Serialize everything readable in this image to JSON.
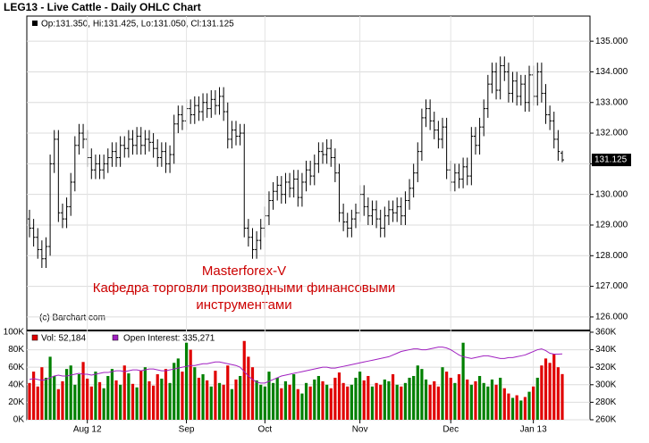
{
  "chart_data": [
    {
      "type": "ohlc",
      "title": "LEG13 - Live Cattle - Daily OHLC Chart",
      "legend": "Op:131.350, Hi:131.425, Lo:131.050, Cl:131.125",
      "color": "#000000",
      "annotations": [
        "Masterforex-V",
        "Кафедра торговли производными финансовыми",
        "инструментами"
      ],
      "annotation_color": "#cc0000",
      "credit": "(c) Barchart.com",
      "grid": true,
      "open": [
        129.2,
        128.9,
        128.6,
        128.2,
        127.9,
        128.3,
        131.0,
        131.8,
        129.4,
        129.2,
        129.6,
        130.4,
        131.6,
        132.0,
        131.8,
        131.2,
        130.8,
        131.0,
        130.8,
        131.0,
        131.2,
        131.4,
        131.2,
        131.6,
        131.5,
        131.8,
        131.6,
        131.9,
        131.6,
        131.8,
        131.7,
        131.5,
        131.2,
        131.4,
        131.0,
        131.3,
        132.3,
        132.6,
        132.4,
        132.8,
        132.6,
        132.9,
        132.7,
        133.0,
        132.8,
        133.1,
        132.9,
        133.2,
        132.7,
        131.8,
        132.1,
        131.9,
        132.0,
        128.9,
        128.6,
        128.2,
        128.5,
        128.9,
        129.3,
        129.8,
        130.1,
        130.3,
        130.0,
        130.4,
        130.2,
        130.5,
        129.9,
        130.4,
        130.8,
        130.6,
        131.0,
        131.4,
        131.3,
        131.5,
        131.2,
        130.7,
        129.4,
        129.1,
        128.9,
        129.2,
        129.4,
        130.0,
        129.6,
        129.3,
        129.5,
        129.2,
        128.9,
        129.3,
        129.5,
        129.4,
        129.6,
        129.3,
        129.8,
        130.2,
        130.7,
        131.4,
        132.5,
        132.8,
        132.4,
        132.1,
        131.8,
        132.2,
        130.8,
        130.4,
        130.7,
        130.5,
        130.9,
        130.6,
        131.9,
        131.6,
        132.2,
        132.8,
        133.6,
        134.0,
        133.4,
        134.2,
        134.0,
        133.3,
        133.7,
        133.2,
        133.6,
        133.0,
        133.9,
        133.2,
        134.0,
        133.3,
        132.6,
        132.4,
        131.8,
        131.35
      ],
      "high": [
        129.5,
        129.2,
        128.9,
        128.5,
        128.6,
        131.3,
        132.1,
        132.1,
        129.7,
        129.9,
        130.7,
        131.9,
        132.3,
        132.3,
        132.1,
        131.5,
        131.3,
        131.3,
        131.3,
        131.5,
        131.7,
        131.7,
        131.9,
        131.9,
        132.1,
        132.1,
        132.2,
        132.2,
        132.1,
        132.1,
        132.0,
        131.8,
        131.7,
        131.7,
        131.6,
        132.6,
        132.9,
        132.9,
        133.1,
        133.1,
        133.2,
        133.2,
        133.3,
        133.3,
        133.4,
        133.4,
        133.5,
        133.5,
        133.0,
        132.4,
        132.4,
        132.3,
        132.3,
        129.2,
        128.9,
        128.8,
        129.2,
        129.6,
        130.1,
        130.4,
        130.6,
        130.6,
        130.7,
        130.7,
        130.8,
        130.8,
        130.7,
        131.1,
        131.1,
        131.3,
        131.7,
        131.7,
        131.8,
        131.8,
        131.5,
        131.0,
        129.7,
        129.4,
        129.5,
        129.7,
        130.3,
        130.3,
        129.9,
        129.8,
        129.8,
        129.5,
        129.6,
        129.8,
        129.8,
        129.9,
        129.9,
        130.1,
        130.5,
        131.0,
        131.7,
        132.8,
        133.1,
        133.1,
        132.7,
        132.4,
        132.5,
        132.5,
        131.1,
        131.0,
        131.0,
        131.2,
        131.2,
        132.2,
        132.2,
        132.5,
        133.1,
        133.9,
        134.3,
        134.3,
        134.5,
        134.5,
        134.3,
        134.0,
        134.0,
        133.9,
        133.9,
        134.2,
        134.2,
        134.3,
        134.3,
        133.6,
        132.9,
        132.7,
        132.1,
        131.425
      ],
      "low": [
        128.6,
        128.3,
        127.9,
        127.6,
        127.6,
        128.0,
        130.7,
        129.1,
        128.9,
        128.9,
        129.3,
        130.1,
        131.3,
        131.5,
        130.9,
        130.5,
        130.5,
        130.5,
        130.5,
        130.7,
        130.9,
        130.9,
        130.9,
        131.2,
        131.2,
        131.3,
        131.3,
        131.3,
        131.3,
        131.4,
        131.2,
        130.9,
        130.9,
        130.7,
        130.7,
        131.0,
        132.0,
        132.1,
        132.1,
        132.3,
        132.3,
        132.4,
        132.4,
        132.5,
        132.5,
        132.6,
        132.6,
        132.4,
        131.5,
        131.5,
        131.6,
        131.6,
        128.6,
        128.3,
        127.9,
        127.9,
        128.2,
        128.6,
        129.0,
        129.5,
        129.8,
        129.7,
        129.7,
        129.9,
        129.9,
        129.6,
        129.6,
        130.1,
        130.3,
        130.3,
        130.7,
        131.0,
        131.0,
        130.9,
        130.4,
        129.1,
        128.8,
        128.6,
        128.6,
        128.9,
        129.1,
        129.3,
        129.0,
        129.0,
        128.9,
        128.6,
        128.6,
        129.0,
        129.1,
        129.1,
        129.0,
        129.0,
        129.5,
        129.9,
        130.4,
        131.1,
        132.2,
        132.1,
        131.8,
        131.5,
        131.5,
        130.5,
        130.1,
        130.1,
        130.2,
        130.2,
        130.3,
        130.3,
        131.3,
        131.3,
        131.9,
        132.5,
        133.3,
        133.1,
        133.1,
        133.7,
        133.0,
        133.0,
        132.9,
        132.9,
        132.7,
        132.7,
        132.9,
        132.9,
        133.0,
        132.3,
        132.1,
        131.5,
        131.1,
        131.05
      ],
      "close": [
        128.9,
        128.6,
        128.2,
        127.9,
        128.3,
        131.0,
        131.8,
        129.4,
        129.2,
        129.6,
        130.4,
        131.6,
        132.0,
        131.8,
        131.2,
        130.8,
        131.0,
        130.8,
        131.0,
        131.2,
        131.4,
        131.2,
        131.6,
        131.5,
        131.8,
        131.6,
        131.9,
        131.6,
        131.8,
        131.7,
        131.5,
        131.2,
        131.4,
        131.0,
        131.3,
        132.3,
        132.6,
        132.4,
        132.8,
        132.6,
        132.9,
        132.7,
        133.0,
        132.8,
        133.1,
        132.9,
        133.2,
        132.7,
        131.8,
        132.1,
        131.9,
        132.0,
        128.9,
        128.6,
        128.2,
        128.5,
        128.9,
        129.3,
        129.8,
        130.1,
        130.3,
        130.0,
        130.4,
        130.2,
        130.5,
        129.9,
        130.4,
        130.8,
        130.6,
        131.0,
        131.4,
        131.3,
        131.5,
        131.2,
        130.7,
        129.4,
        129.1,
        128.9,
        129.2,
        129.4,
        130.0,
        129.6,
        129.3,
        129.5,
        129.2,
        128.9,
        129.3,
        129.5,
        129.4,
        129.6,
        129.3,
        129.8,
        130.2,
        130.7,
        131.4,
        132.5,
        132.8,
        132.4,
        132.1,
        131.8,
        132.2,
        130.8,
        130.4,
        130.7,
        130.5,
        130.9,
        130.6,
        131.9,
        131.6,
        132.2,
        132.8,
        133.6,
        134.0,
        133.4,
        134.2,
        134.0,
        133.3,
        133.7,
        133.2,
        133.6,
        133.0,
        133.9,
        133.2,
        134.0,
        133.3,
        132.6,
        132.4,
        131.8,
        131.4,
        131.125
      ],
      "ylim": [
        125.56,
        135.82
      ],
      "yticks": [
        {
          "value": 126,
          "label": "126.000"
        },
        {
          "value": 127,
          "label": "127.000"
        },
        {
          "value": 128,
          "label": "128.000"
        },
        {
          "value": 129,
          "label": "129.000"
        },
        {
          "value": 130,
          "label": "130.000"
        },
        {
          "value": 131,
          "label": "131.000"
        },
        {
          "value": 132,
          "label": "132.000"
        },
        {
          "value": 133,
          "label": "133.000"
        },
        {
          "value": 134,
          "label": "134.000"
        },
        {
          "value": 135,
          "label": "135.000"
        }
      ]
    },
    {
      "type": "bar",
      "up_color": "#008000",
      "down_color": "#e00000",
      "grid": true,
      "categories": [
        null,
        null,
        null,
        null,
        null,
        null,
        null,
        null,
        null,
        null,
        null,
        null,
        null,
        null,
        "Aug 12",
        null,
        null,
        null,
        null,
        null,
        null,
        null,
        null,
        null,
        null,
        null,
        null,
        null,
        null,
        null,
        null,
        null,
        null,
        null,
        null,
        null,
        null,
        null,
        "Sep",
        null,
        null,
        null,
        null,
        null,
        null,
        null,
        null,
        null,
        null,
        null,
        null,
        null,
        null,
        null,
        null,
        null,
        null,
        "Oct",
        null,
        null,
        null,
        null,
        null,
        null,
        null,
        null,
        null,
        null,
        null,
        null,
        null,
        null,
        null,
        null,
        null,
        null,
        null,
        null,
        null,
        null,
        "Nov",
        null,
        null,
        null,
        null,
        null,
        null,
        null,
        null,
        null,
        null,
        null,
        null,
        null,
        null,
        null,
        null,
        null,
        null,
        null,
        null,
        null,
        "Dec",
        null,
        null,
        null,
        null,
        null,
        null,
        null,
        null,
        null,
        null,
        null,
        null,
        null,
        null,
        null,
        null,
        null,
        null,
        null,
        "Jan 13",
        null,
        null,
        null,
        null,
        null,
        null,
        null
      ],
      "series": [
        {
          "name": "Vol: 52,184",
          "color": "#e00000",
          "values": [
            42000,
            55000,
            38000,
            60000,
            48000,
            72000,
            50000,
            35000,
            44000,
            58000,
            62000,
            40000,
            52000,
            66000,
            47000,
            38000,
            55000,
            43000,
            36000,
            50000,
            58000,
            45000,
            40000,
            62000,
            53000,
            41000,
            37000,
            56000,
            60000,
            44000,
            39000,
            52000,
            47000,
            58000,
            42000,
            65000,
            70000,
            55000,
            88000,
            80000,
            60000,
            48000,
            52000,
            45000,
            38000,
            56000,
            42000,
            40000,
            62000,
            35000,
            46000,
            50000,
            90000,
            72000,
            60000,
            45000,
            40000,
            38000,
            55000,
            42000,
            48000,
            36000,
            44000,
            40000,
            52000,
            35000,
            30000,
            42000,
            38000,
            46000,
            50000,
            44000,
            40000,
            36000,
            48000,
            54000,
            42000,
            38000,
            40000,
            48000,
            55000,
            45000,
            50000,
            38000,
            42000,
            40000,
            46000,
            44000,
            52000,
            40000,
            38000,
            42000,
            48000,
            50000,
            62000,
            58000,
            46000,
            40000,
            44000,
            38000,
            60000,
            55000,
            48000,
            42000,
            52000,
            88000,
            46000,
            40000,
            44000,
            50000,
            42000,
            38000,
            46000,
            40000,
            48000,
            36000,
            30000,
            25000,
            28000,
            22000,
            26000,
            32000,
            38000,
            48000,
            62000,
            70000,
            65000,
            75000,
            60000,
            52184
          ]
        },
        {
          "name": "Open Interest: 335,271",
          "color": "#a020c0",
          "axis": "y2",
          "values": [
            306000,
            307000,
            306000,
            305000,
            306000,
            308000,
            310000,
            311000,
            310000,
            310000,
            311000,
            312000,
            313000,
            312000,
            312000,
            311000,
            312000,
            313000,
            314000,
            314000,
            315000,
            316000,
            316000,
            315000,
            316000,
            317000,
            317000,
            316000,
            317000,
            318000,
            318000,
            317000,
            316000,
            316000,
            317000,
            318000,
            319000,
            320000,
            321000,
            322000,
            322000,
            323000,
            324000,
            324000,
            325000,
            326000,
            326000,
            325000,
            324000,
            323000,
            322000,
            320000,
            315000,
            310000,
            306000,
            303000,
            302000,
            302000,
            304000,
            306000,
            308000,
            310000,
            311000,
            312000,
            313000,
            314000,
            315000,
            316000,
            317000,
            318000,
            319000,
            320000,
            320000,
            319000,
            319000,
            320000,
            321000,
            322000,
            323000,
            324000,
            325000,
            326000,
            327000,
            328000,
            329000,
            330000,
            331000,
            332000,
            334000,
            336000,
            338000,
            339000,
            340000,
            341000,
            341000,
            340000,
            340000,
            341000,
            342000,
            343000,
            343000,
            342000,
            340000,
            337000,
            334000,
            332000,
            331000,
            330000,
            331000,
            332000,
            333000,
            333000,
            332000,
            331000,
            330000,
            330000,
            331000,
            331000,
            332000,
            333000,
            334000,
            336000,
            338000,
            340000,
            341000,
            339000,
            336000,
            335000,
            335000,
            335271
          ]
        }
      ],
      "ylim": [
        0,
        102000
      ],
      "yticks": [
        {
          "value": 0,
          "label": "0K"
        },
        {
          "value": 20000,
          "label": "20K"
        },
        {
          "value": 40000,
          "label": "40K"
        },
        {
          "value": 60000,
          "label": "60K"
        },
        {
          "value": 80000,
          "label": "80K"
        },
        {
          "value": 100000,
          "label": "100K"
        }
      ],
      "y2lim": [
        260000,
        362000
      ],
      "y2ticks": [
        {
          "value": 260000,
          "label": "260K"
        },
        {
          "value": 280000,
          "label": "280K"
        },
        {
          "value": 300000,
          "label": "300K"
        },
        {
          "value": 320000,
          "label": "320K"
        },
        {
          "value": 340000,
          "label": "340K"
        },
        {
          "value": 360000,
          "label": "360K"
        }
      ]
    }
  ]
}
